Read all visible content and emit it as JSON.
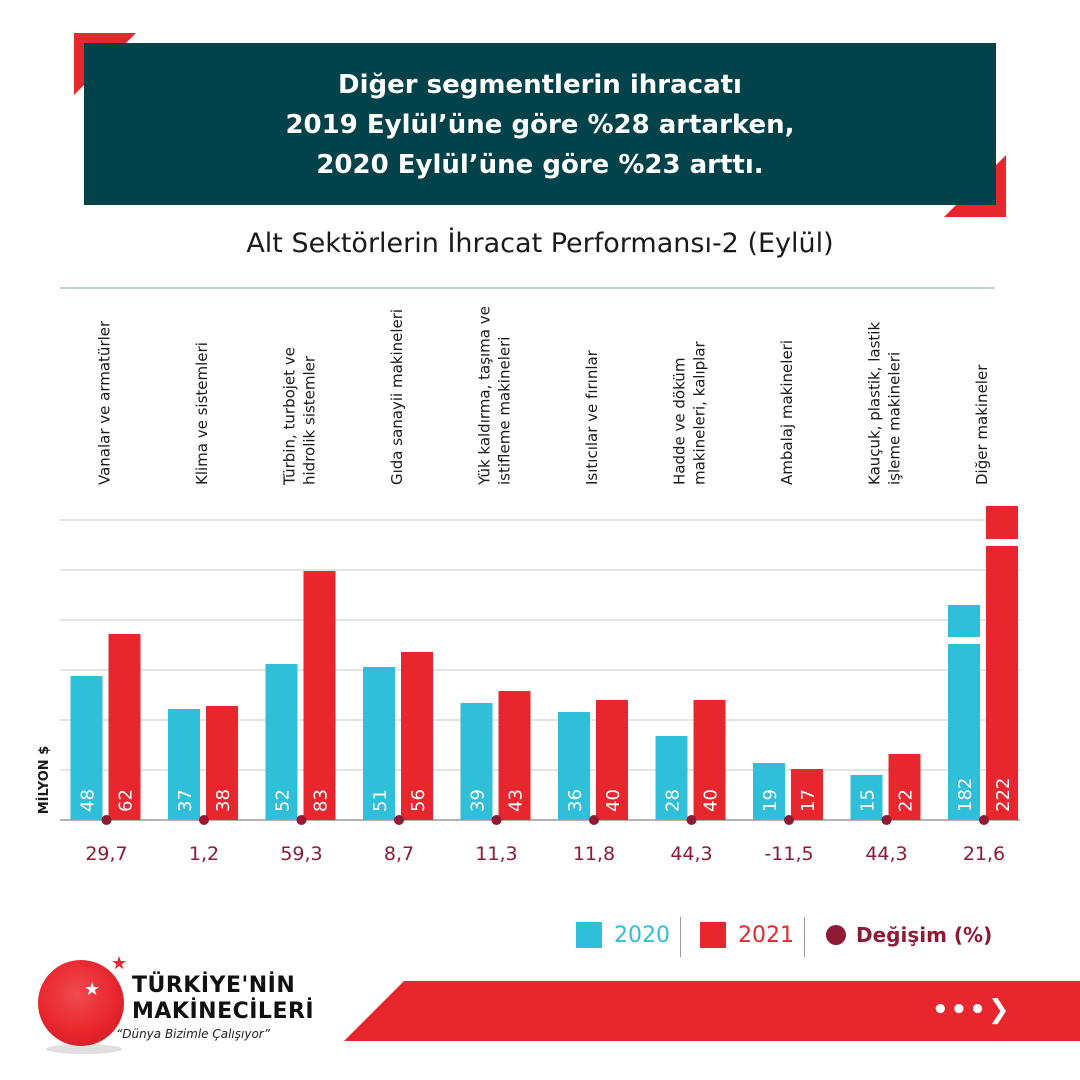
{
  "header": {
    "line1": "Diğer segmentlerin ihracatı",
    "line2": "2019 Eylül’üne göre %28 artarken,",
    "line3": "2020 Eylül’üne göre %23 arttı."
  },
  "colors": {
    "header_bg": "#02424a",
    "accent_red": "#e8262d",
    "series_2020": "#2fbfd8",
    "series_2021": "#e8262d",
    "change_dot": "#8e1a33"
  },
  "chart_data": {
    "type": "bar",
    "title": "Alt Sektörlerin İhracat Performansı-2 (Eylül)",
    "ylabel": "MİLYON $",
    "categories": [
      "Vanalar ve armatürler",
      "Klima ve sistemleri",
      "Türbin, turbojet ve hidrolik sistemler",
      "Gıda sanayii makineleri",
      "Yük kaldırma, taşıma ve istifleme makineleri",
      "Isıtıcılar ve fırınlar",
      "Hadde ve döküm makineleri, kalıplar",
      "Ambalaj makineleri",
      "Kauçuk, plastik, lastik işleme makineleri",
      "Diğer makineler"
    ],
    "category_lines": [
      [
        "Vanalar ve armatürler"
      ],
      [
        "Klima ve sistemleri"
      ],
      [
        "Türbin, turbojet ve",
        "hidrolik sistemler"
      ],
      [
        "Gıda sanayii makineleri"
      ],
      [
        "Yük kaldırma, taşıma ve",
        "istifleme makineleri"
      ],
      [
        "Isıtıcılar ve fırınlar"
      ],
      [
        "Hadde ve döküm",
        "makineleri, kalıplar"
      ],
      [
        "Ambalaj makineleri"
      ],
      [
        "Kauçuk, plastik, lastik",
        "işleme makineleri"
      ],
      [
        "Diğer makineler"
      ]
    ],
    "series": [
      {
        "name": "2020",
        "values": [
          48,
          37,
          52,
          51,
          39,
          36,
          28,
          19,
          15,
          182
        ]
      },
      {
        "name": "2021",
        "values": [
          62,
          38,
          83,
          56,
          43,
          40,
          40,
          17,
          22,
          222
        ]
      }
    ],
    "change": {
      "name": "Değişim (%)",
      "labels": [
        "29,7",
        "1,2",
        "59,3",
        "8,7",
        "11,3",
        "11,8",
        "44,3",
        "-11,5",
        "44,3",
        "21,6"
      ]
    },
    "grid": true,
    "broken_axis_category": "Diğer makineler",
    "legend_position": "bottom-right"
  },
  "legend": {
    "item_2020": "2020",
    "item_2021": "2021",
    "item_change": "Değişim (%)"
  },
  "logo": {
    "line1": "TÜRKİYE'NİN",
    "line2": "MAKİNECİLERİ",
    "slogan": "“Dünya Bizimle Çalışıyor”"
  },
  "footer": {
    "arrow_icon": "next-arrow-icon"
  }
}
